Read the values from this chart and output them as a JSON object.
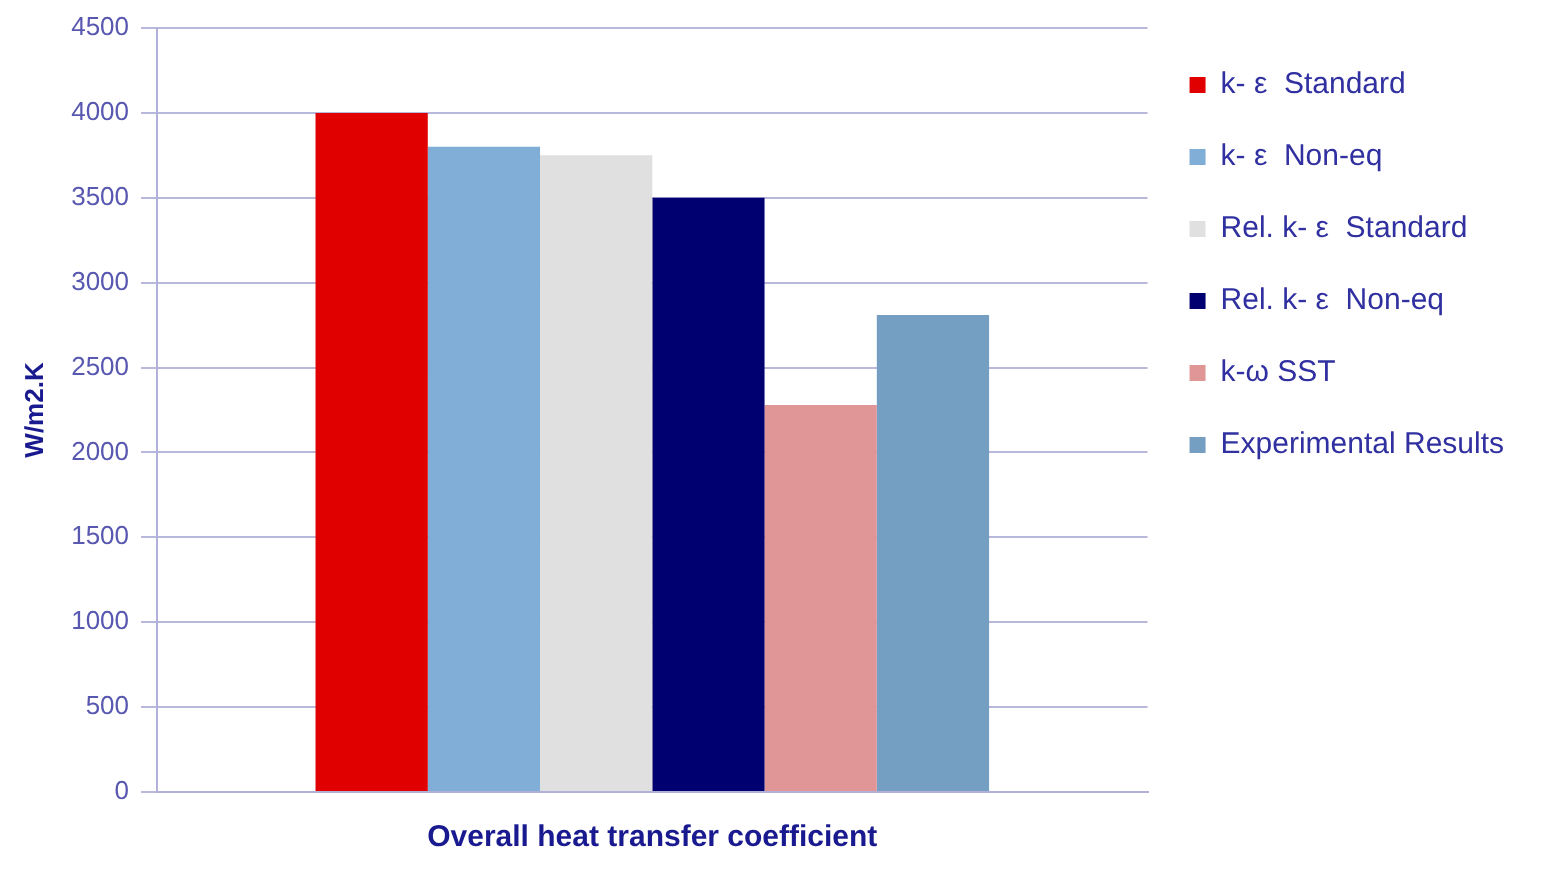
{
  "chart_data": {
    "type": "bar",
    "ylabel": "W/m2.K",
    "categories": [
      "Overall heat transfer coefficient"
    ],
    "series": [
      {
        "name": "k- ε  Standard",
        "color": "#e00000",
        "values": [
          4000
        ]
      },
      {
        "name": "k- ε  Non-eq",
        "color": "#80aed6",
        "values": [
          3800
        ]
      },
      {
        "name": "Rel. k- ε  Standard",
        "color": "#e0e0e0",
        "values": [
          3750
        ]
      },
      {
        "name": "Rel. k- ε  Non-eq",
        "color": "#000070",
        "values": [
          3500
        ]
      },
      {
        "name": "k-ω SST",
        "color": "#e09696",
        "values": [
          2280
        ]
      },
      {
        "name": "Experimental Results",
        "color": "#749ec2",
        "values": [
          2810
        ]
      }
    ],
    "ylim": [
      0,
      4500
    ],
    "yticks": [
      0,
      500,
      1000,
      1500,
      2000,
      2500,
      3000,
      3500,
      4000,
      4500
    ],
    "grid": "y",
    "legend": "right"
  }
}
